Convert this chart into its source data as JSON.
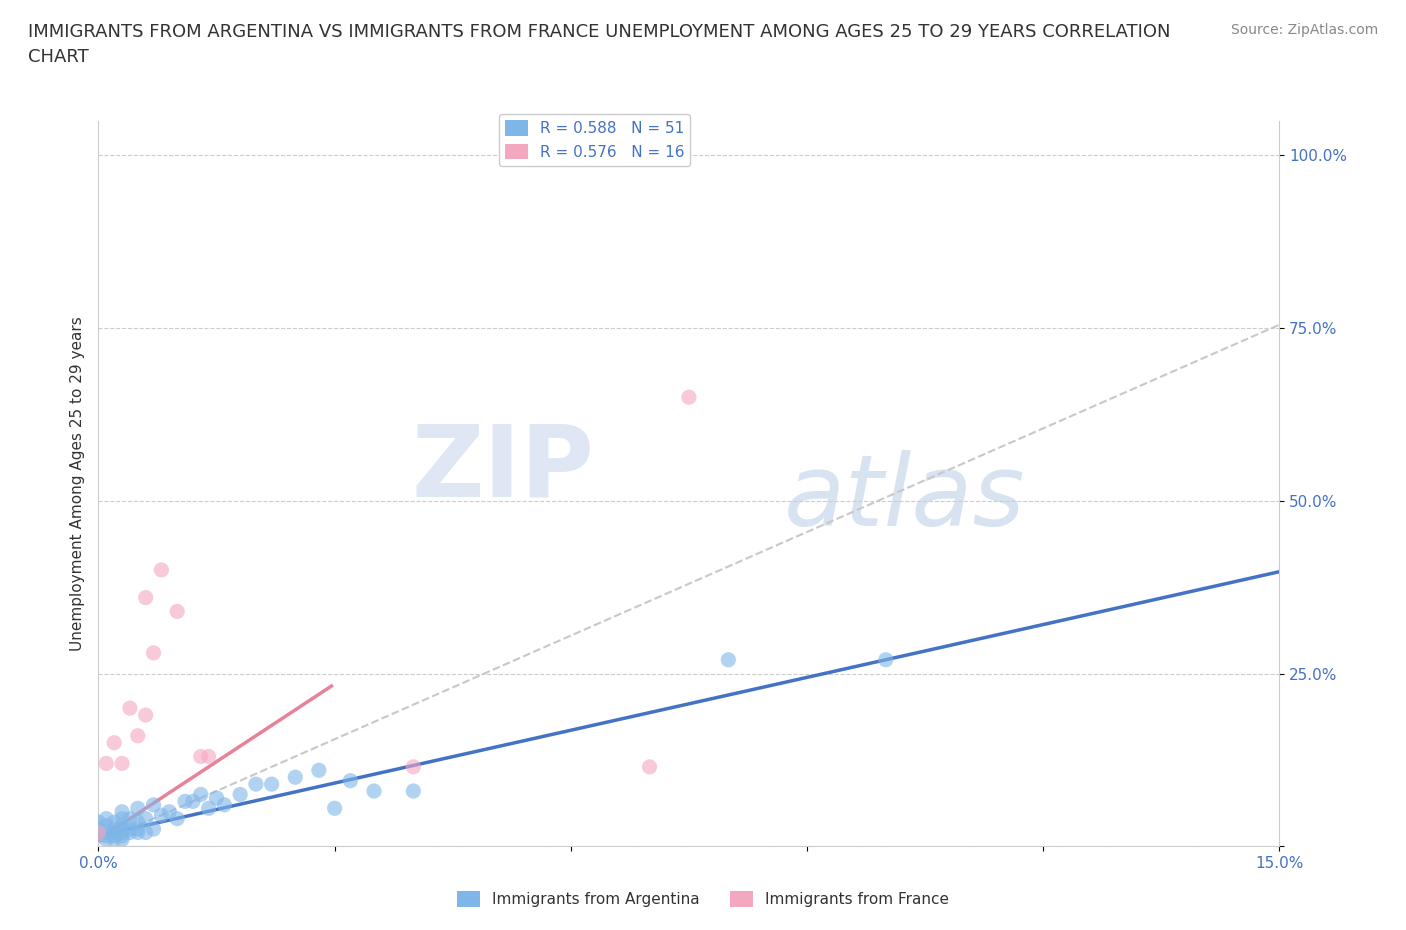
{
  "title_line1": "IMMIGRANTS FROM ARGENTINA VS IMMIGRANTS FROM FRANCE UNEMPLOYMENT AMONG AGES 25 TO 29 YEARS CORRELATION",
  "title_line2": "CHART",
  "source": "Source: ZipAtlas.com",
  "ylabel": "Unemployment Among Ages 25 to 29 years",
  "xlim": [
    0.0,
    0.15
  ],
  "ylim": [
    0.0,
    1.05
  ],
  "x_ticks": [
    0.0,
    0.03,
    0.06,
    0.09,
    0.12,
    0.15
  ],
  "y_ticks": [
    0.0,
    0.25,
    0.5,
    0.75,
    1.0
  ],
  "argentina_color": "#7EB6E8",
  "france_color": "#F4A8C0",
  "argentina_trendline_color": "#4472C4",
  "france_trendline_color": "#E8829A",
  "gray_dash_color": "#C8C8C8",
  "argentina_R": 0.588,
  "argentina_N": 51,
  "france_R": 0.576,
  "france_N": 16,
  "legend_label_argentina": "Immigrants from Argentina",
  "legend_label_france": "Immigrants from France",
  "watermark_zip": "ZIP",
  "watermark_atlas": "atlas",
  "label_color": "#4472C4",
  "title_fontsize": 13,
  "axis_label_fontsize": 11,
  "tick_fontsize": 11,
  "legend_fontsize": 11,
  "source_fontsize": 10,
  "argentina_x": [
    0.0,
    0.0,
    0.0,
    0.001,
    0.001,
    0.001,
    0.001,
    0.001,
    0.002,
    0.002,
    0.002,
    0.002,
    0.002,
    0.003,
    0.003,
    0.003,
    0.003,
    0.003,
    0.003,
    0.003,
    0.004,
    0.004,
    0.004,
    0.005,
    0.005,
    0.005,
    0.005,
    0.006,
    0.006,
    0.007,
    0.007,
    0.008,
    0.009,
    0.01,
    0.011,
    0.012,
    0.013,
    0.014,
    0.015,
    0.016,
    0.018,
    0.02,
    0.022,
    0.025,
    0.028,
    0.03,
    0.032,
    0.035,
    0.04,
    0.08,
    0.1
  ],
  "argentina_y": [
    0.02,
    0.025,
    0.035,
    0.01,
    0.015,
    0.02,
    0.03,
    0.04,
    0.01,
    0.015,
    0.02,
    0.025,
    0.035,
    0.01,
    0.015,
    0.02,
    0.025,
    0.03,
    0.04,
    0.05,
    0.02,
    0.025,
    0.04,
    0.02,
    0.025,
    0.035,
    0.055,
    0.02,
    0.04,
    0.025,
    0.06,
    0.045,
    0.05,
    0.04,
    0.065,
    0.065,
    0.075,
    0.055,
    0.07,
    0.06,
    0.075,
    0.09,
    0.09,
    0.1,
    0.11,
    0.055,
    0.095,
    0.08,
    0.08,
    0.27,
    0.27
  ],
  "france_x": [
    0.0,
    0.001,
    0.002,
    0.003,
    0.004,
    0.005,
    0.006,
    0.006,
    0.007,
    0.008,
    0.01,
    0.013,
    0.014,
    0.04,
    0.07,
    0.075
  ],
  "france_y": [
    0.02,
    0.12,
    0.15,
    0.12,
    0.2,
    0.16,
    0.19,
    0.36,
    0.28,
    0.4,
    0.34,
    0.13,
    0.13,
    0.115,
    0.115,
    0.65
  ]
}
